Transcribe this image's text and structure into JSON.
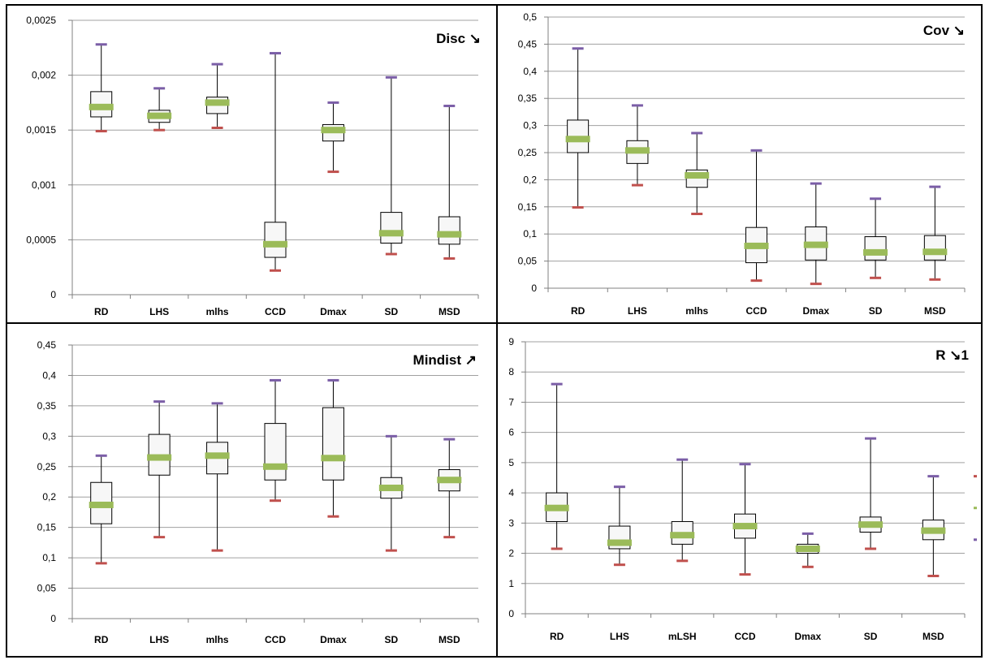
{
  "chart_data": [
    {
      "type": "box",
      "title": "Disc ↘",
      "categories": [
        "RD",
        "LHS",
        "mlhs",
        "CCD",
        "Dmax",
        "SD",
        "MSD"
      ],
      "ylim": [
        0,
        0.0025
      ],
      "yticks": [
        "0",
        "0,0005",
        "0,001",
        "0,0015",
        "0,002",
        "0,0025"
      ],
      "ytick_values": [
        0,
        0.0005,
        0.001,
        0.0015,
        0.002,
        0.0025
      ],
      "series": {
        "max": [
          0.00228,
          0.00188,
          0.0021,
          0.0022,
          0.00175,
          0.00198,
          0.00172
        ],
        "q3": [
          0.00185,
          0.00168,
          0.0018,
          0.00066,
          0.00155,
          0.00075,
          0.00071
        ],
        "median": [
          0.00171,
          0.00163,
          0.00175,
          0.00046,
          0.0015,
          0.00056,
          0.00055
        ],
        "q1": [
          0.00162,
          0.00157,
          0.00165,
          0.00034,
          0.0014,
          0.00047,
          0.00046
        ],
        "min": [
          0.00149,
          0.0015,
          0.00152,
          0.00022,
          0.00112,
          0.00037,
          0.00033
        ]
      },
      "grid": true
    },
    {
      "type": "box",
      "title": "Cov ↘",
      "categories": [
        "RD",
        "LHS",
        "mlhs",
        "CCD",
        "Dmax",
        "SD",
        "MSD"
      ],
      "ylim": [
        0,
        0.5
      ],
      "yticks": [
        "0",
        "0,05",
        "0,1",
        "0,15",
        "0,2",
        "0,25",
        "0,3",
        "0,35",
        "0,4",
        "0,45",
        "0,5"
      ],
      "ytick_values": [
        0,
        0.05,
        0.1,
        0.15,
        0.2,
        0.25,
        0.3,
        0.35,
        0.4,
        0.45,
        0.5
      ],
      "series": {
        "max": [
          0.442,
          0.337,
          0.286,
          0.254,
          0.193,
          0.165,
          0.187
        ],
        "q3": [
          0.31,
          0.272,
          0.218,
          0.112,
          0.113,
          0.095,
          0.097
        ],
        "median": [
          0.275,
          0.254,
          0.208,
          0.078,
          0.08,
          0.066,
          0.067
        ],
        "q1": [
          0.25,
          0.23,
          0.186,
          0.047,
          0.052,
          0.052,
          0.052
        ],
        "min": [
          0.149,
          0.19,
          0.137,
          0.014,
          0.008,
          0.019,
          0.016
        ]
      },
      "grid": true
    },
    {
      "type": "box",
      "title": "Mindist ↗",
      "categories": [
        "RD",
        "LHS",
        "mlhs",
        "CCD",
        "Dmax",
        "SD",
        "MSD"
      ],
      "ylim": [
        0,
        0.45
      ],
      "yticks": [
        "0",
        "0,05",
        "0,1",
        "0,15",
        "0,2",
        "0,25",
        "0,3",
        "0,35",
        "0,4",
        "0,45"
      ],
      "ytick_values": [
        0,
        0.05,
        0.1,
        0.15,
        0.2,
        0.25,
        0.3,
        0.35,
        0.4,
        0.45
      ],
      "series": {
        "max": [
          0.268,
          0.357,
          0.354,
          0.392,
          0.392,
          0.3,
          0.295
        ],
        "q3": [
          0.224,
          0.303,
          0.29,
          0.321,
          0.347,
          0.232,
          0.245
        ],
        "median": [
          0.187,
          0.265,
          0.268,
          0.25,
          0.264,
          0.215,
          0.228
        ],
        "q1": [
          0.156,
          0.236,
          0.238,
          0.228,
          0.228,
          0.198,
          0.21
        ],
        "min": [
          0.091,
          0.134,
          0.112,
          0.194,
          0.168,
          0.112,
          0.134
        ]
      },
      "grid": true
    },
    {
      "type": "box",
      "title": "R ↘1",
      "categories": [
        "RD",
        "LHS",
        "mLSH",
        "CCD",
        "Dmax",
        "SD",
        "MSD"
      ],
      "ylim": [
        0,
        9
      ],
      "yticks": [
        "0",
        "1",
        "2",
        "3",
        "4",
        "5",
        "6",
        "7",
        "8",
        "9"
      ],
      "ytick_values": [
        0,
        1,
        2,
        3,
        4,
        5,
        6,
        7,
        8,
        9
      ],
      "series": {
        "max": [
          7.6,
          4.2,
          5.1,
          4.95,
          2.65,
          5.8,
          4.55
        ],
        "q3": [
          4.0,
          2.9,
          3.05,
          3.3,
          2.3,
          3.2,
          3.1
        ],
        "median": [
          3.5,
          2.35,
          2.6,
          2.9,
          2.15,
          2.95,
          2.75
        ],
        "q1": [
          3.05,
          2.15,
          2.3,
          2.5,
          2.0,
          2.7,
          2.45
        ],
        "min": [
          2.15,
          1.62,
          1.75,
          1.3,
          1.55,
          2.15,
          1.25
        ]
      },
      "grid": true,
      "legend": "right"
    }
  ],
  "colors": {
    "max_marker": "#7b5ea7",
    "median_marker": "#9bbb59",
    "min_marker": "#c0504d",
    "gridline": "#a0a0a0",
    "box_fill": "#f7f7f7"
  }
}
